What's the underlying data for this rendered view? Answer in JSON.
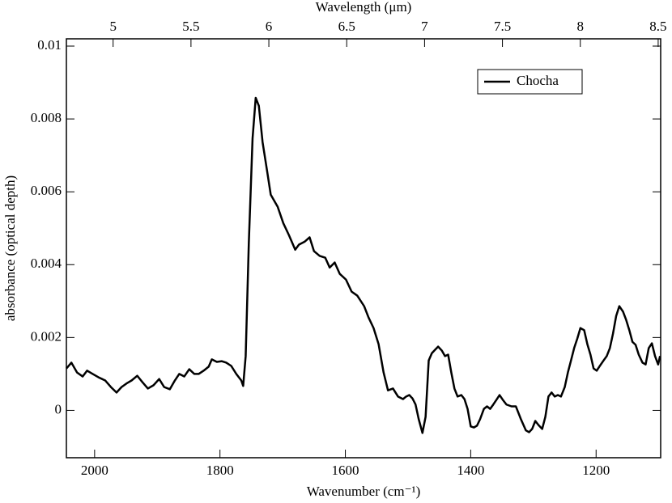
{
  "chart_data": {
    "type": "line",
    "x_label": "Wavenumber (cm⁻¹)",
    "x2_label": "Wavelength (μm)",
    "y_label": "absorbance (optical depth)",
    "xlim": [
      2045,
      1097
    ],
    "xticks": [
      2000,
      1800,
      1600,
      1400,
      1200
    ],
    "x2lim": [
      4.7,
      8.516
    ],
    "x2ticks": [
      5,
      5.5,
      6,
      6.5,
      7,
      7.5,
      8,
      8.5
    ],
    "ylim": [
      -0.0013,
      0.0102
    ],
    "yticks": [
      0,
      0.002,
      0.004,
      0.006,
      0.008,
      0.01
    ],
    "legend": "upper right",
    "grid": false,
    "x": [
      2045,
      2037,
      2028,
      2019,
      2012,
      2003,
      1994,
      1983,
      1974,
      1965,
      1957,
      1948,
      1941,
      1932,
      1924,
      1915,
      1906,
      1897,
      1889,
      1880,
      1872,
      1865,
      1857,
      1849,
      1841,
      1834,
      1826,
      1818,
      1813,
      1805,
      1797,
      1790,
      1782,
      1774,
      1766,
      1763,
      1759,
      1754,
      1748,
      1743,
      1738,
      1732,
      1725,
      1719,
      1708,
      1699,
      1690,
      1680,
      1674,
      1665,
      1657,
      1650,
      1641,
      1632,
      1625,
      1617,
      1609,
      1599,
      1590,
      1581,
      1570,
      1563,
      1555,
      1547,
      1539,
      1532,
      1524,
      1516,
      1508,
      1503,
      1498,
      1493,
      1488,
      1483,
      1477,
      1472,
      1467,
      1462,
      1457,
      1452,
      1446,
      1441,
      1436,
      1431,
      1426,
      1421,
      1415,
      1410,
      1405,
      1400,
      1395,
      1390,
      1385,
      1379,
      1374,
      1369,
      1364,
      1359,
      1354,
      1348,
      1343,
      1335,
      1328,
      1320,
      1312,
      1307,
      1302,
      1297,
      1292,
      1286,
      1281,
      1276,
      1271,
      1266,
      1261,
      1256,
      1250,
      1245,
      1240,
      1235,
      1230,
      1225,
      1219,
      1214,
      1209,
      1204,
      1199,
      1194,
      1188,
      1183,
      1178,
      1173,
      1168,
      1163,
      1157,
      1152,
      1147,
      1142,
      1137,
      1132,
      1126,
      1121,
      1116,
      1111,
      1106,
      1101,
      1098
    ],
    "series": [
      {
        "name": "Chocha",
        "color": "#000000",
        "values": [
          0.00115,
          0.00131,
          0.00104,
          0.00093,
          0.00109,
          0.001,
          0.00091,
          0.00082,
          0.00064,
          0.00049,
          0.00064,
          0.00075,
          0.00082,
          0.00095,
          0.00078,
          0.0006,
          0.00069,
          0.00086,
          0.00064,
          0.00058,
          0.00082,
          0.001,
          0.00093,
          0.00113,
          0.001,
          0.001,
          0.00109,
          0.0012,
          0.0014,
          0.00133,
          0.00135,
          0.00131,
          0.00122,
          0.001,
          0.00082,
          0.00067,
          0.00149,
          0.00459,
          0.00747,
          0.00858,
          0.00836,
          0.00736,
          0.00659,
          0.00592,
          0.00559,
          0.00514,
          0.00481,
          0.00441,
          0.00455,
          0.00463,
          0.00475,
          0.00437,
          0.00424,
          0.00419,
          0.00392,
          0.00406,
          0.00375,
          0.00359,
          0.00326,
          0.00315,
          0.00286,
          0.00255,
          0.00226,
          0.00182,
          0.00104,
          0.00055,
          0.0006,
          0.00038,
          0.00031,
          0.00038,
          0.00042,
          0.00033,
          0.00016,
          -0.00024,
          -0.00062,
          -0.00018,
          0.00137,
          0.00157,
          0.00166,
          0.00175,
          0.00164,
          0.00149,
          0.00153,
          0.00104,
          0.0006,
          0.00038,
          0.00042,
          0.00031,
          4e-05,
          -0.00044,
          -0.00047,
          -0.00042,
          -0.00024,
          4e-05,
          0.00011,
          4e-05,
          0.00016,
          0.00029,
          0.00042,
          0.00027,
          0.00016,
          0.00011,
          0.00011,
          -0.00024,
          -0.00055,
          -0.0006,
          -0.00051,
          -0.00029,
          -0.0004,
          -0.00051,
          -0.00018,
          0.00038,
          0.00049,
          0.00038,
          0.00042,
          0.00038,
          0.00064,
          0.00104,
          0.00137,
          0.00171,
          0.00197,
          0.00226,
          0.0022,
          0.00182,
          0.00153,
          0.00115,
          0.00109,
          0.00122,
          0.00137,
          0.00149,
          0.00171,
          0.00211,
          0.00259,
          0.00286,
          0.00271,
          0.00248,
          0.0022,
          0.00188,
          0.0018,
          0.00153,
          0.00131,
          0.00126,
          0.00171,
          0.00184,
          0.00149,
          0.00126,
          0.00149
        ]
      }
    ]
  }
}
